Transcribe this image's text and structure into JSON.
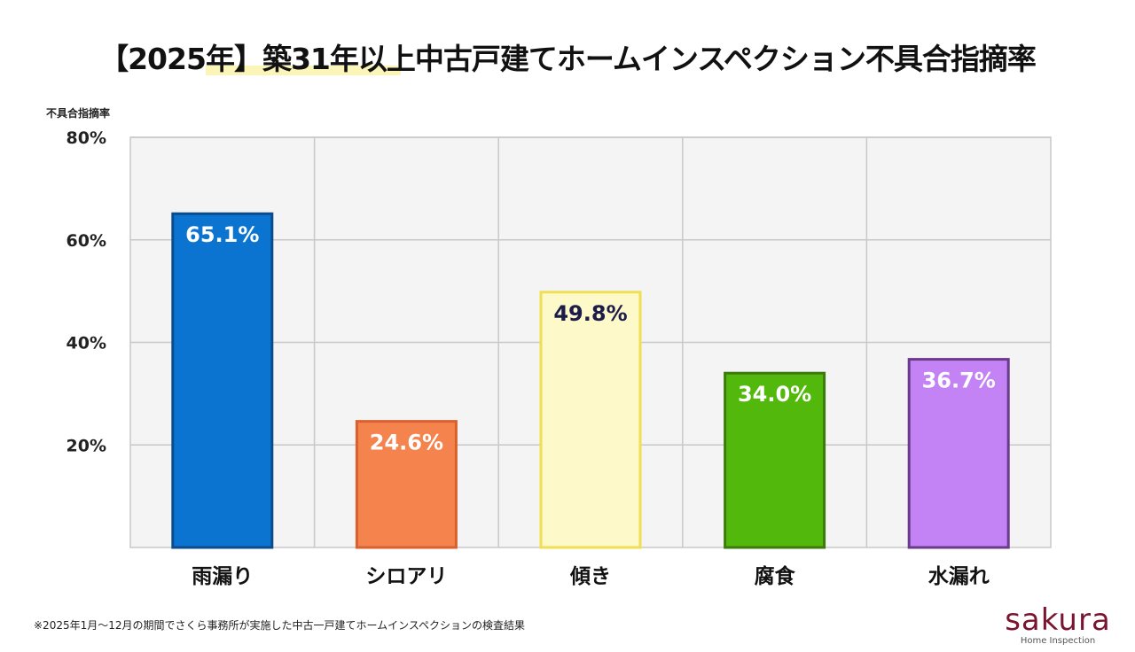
{
  "chart_data": {
    "type": "bar",
    "title": "【2025年】築31年以上中古戸建てホームインスペクション不具合指摘率",
    "ylabel": "不具合指摘率",
    "xlabel": "",
    "ylim": [
      0,
      80
    ],
    "yticks": [
      20,
      40,
      60,
      80
    ],
    "ytick_labels": [
      "20%",
      "40%",
      "60%",
      "80%"
    ],
    "grid": true,
    "categories": [
      "雨漏り",
      "シロアリ",
      "傾き",
      "腐食",
      "水漏れ"
    ],
    "values": [
      65.1,
      24.6,
      49.8,
      34.0,
      36.7
    ],
    "data_labels": [
      "65.1%",
      "24.6%",
      "49.8%",
      "34.0%",
      "36.7%"
    ],
    "colors": [
      "#0a74d0",
      "#f5834e",
      "#fdf9c8",
      "#52b80c",
      "#c483f5"
    ],
    "border_colors": [
      "#0b4c8c",
      "#d8612c",
      "#efdf55",
      "#3c7a0c",
      "#6a3a8c"
    ],
    "label_colors": [
      "#ffffff",
      "#ffffff",
      "#1c1c4a",
      "#ffffff",
      "#ffffff"
    ]
  },
  "footnote": "※2025年1月〜12月の期間でさくら事務所が実施した中古一戸建てホームインスペクションの検査結果",
  "logo": {
    "wordmark": "sakura",
    "sub": "Home Inspection"
  }
}
